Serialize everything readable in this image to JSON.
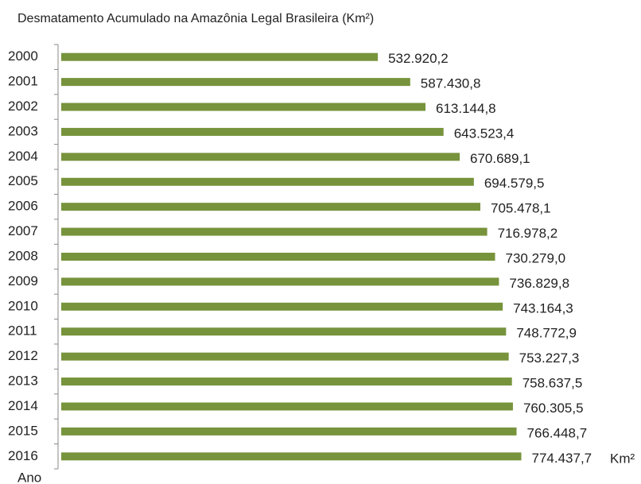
{
  "chart_data": {
    "type": "bar",
    "orientation": "horizontal",
    "title": "Desmatamento Acumulado na Amazônia Legal Brasileira (Km²)",
    "x_label": "Km²",
    "y_label": "Ano",
    "color": "#77933c",
    "categories": [
      "2000",
      "2001",
      "2002",
      "2003",
      "2004",
      "2005",
      "2006",
      "2007",
      "2008",
      "2009",
      "2010",
      "2011",
      "2012",
      "2013",
      "2014",
      "2015",
      "2016"
    ],
    "values": [
      532920.2,
      587430.8,
      613144.8,
      643523.4,
      670689.1,
      694579.5,
      705478.1,
      716978.2,
      730279.0,
      736829.8,
      743164.3,
      748772.9,
      753227.3,
      758637.5,
      760305.5,
      766448.7,
      774437.7
    ],
    "value_labels": [
      "532.920,2",
      "587.430,8",
      "613.144,8",
      "643.523,4",
      "670.689,1",
      "694.579,5",
      "705.478,1",
      "716.978,2",
      "730.279,0",
      "736.829,8",
      "743.164,3",
      "748.772,9",
      "753.227,3",
      "758.637,5",
      "760.305,5",
      "766.448,7",
      "774.437,7"
    ]
  }
}
